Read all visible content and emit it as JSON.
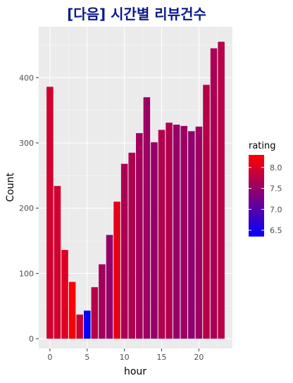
{
  "chart_data": {
    "type": "bar",
    "title": "[다음] 시간별 리뷰건수",
    "xlabel": "hour",
    "ylabel": "Count",
    "x": [
      0,
      1,
      2,
      3,
      4,
      5,
      6,
      7,
      8,
      9,
      10,
      11,
      12,
      13,
      14,
      15,
      16,
      17,
      18,
      19,
      20,
      21,
      22,
      23
    ],
    "values": [
      386,
      234,
      136,
      87,
      37,
      43,
      79,
      114,
      159,
      210,
      268,
      285,
      315,
      370,
      301,
      320,
      331,
      328,
      326,
      318,
      325,
      389,
      445,
      455
    ],
    "rating": [
      7.95,
      7.95,
      8.05,
      8.25,
      7.9,
      6.4,
      7.75,
      7.6,
      7.5,
      8.1,
      7.65,
      7.7,
      7.6,
      7.55,
      7.5,
      7.7,
      7.7,
      7.5,
      7.55,
      7.45,
      7.55,
      7.75,
      7.65,
      7.75
    ],
    "xticks": [
      "0",
      "5",
      "10",
      "15",
      "20"
    ],
    "xtick_values": [
      0,
      5,
      10,
      15,
      20
    ],
    "yticks": [
      "0",
      "100",
      "200",
      "300",
      "400"
    ],
    "ytick_values": [
      0,
      100,
      200,
      300,
      400
    ],
    "xlim": [
      -1.5,
      24.5
    ],
    "ylim": [
      -15,
      478
    ],
    "grid": true,
    "legend": {
      "title": "rating",
      "position": "right",
      "labels": [
        "8.0",
        "7.5",
        "7.0",
        "6.5"
      ],
      "values": [
        8.0,
        7.5,
        7.0,
        6.5
      ],
      "range": [
        6.35,
        8.3
      ],
      "color_low": "#0000ff",
      "color_high": "#ff0000"
    },
    "colors": {
      "panel_bg": "#ebebeb",
      "grid_major": "#ffffff",
      "title": "#0a1a8c"
    }
  }
}
